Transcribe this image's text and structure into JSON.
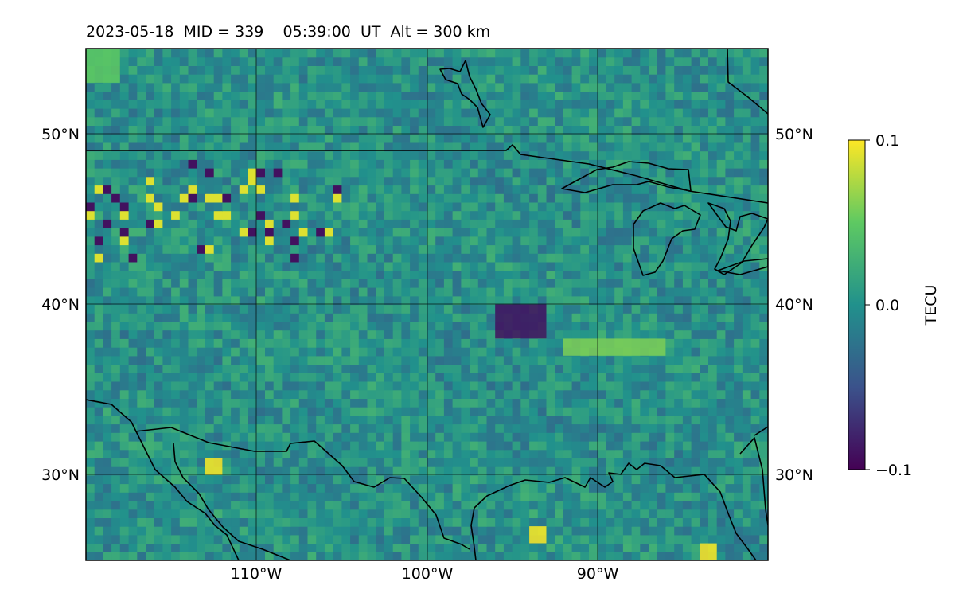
{
  "title": "2023-05-18  MID = 339    05:39:00  UT  Alt = 300 km",
  "map": {
    "lon_range": [
      -120,
      -80
    ],
    "lat_range": [
      25,
      55
    ],
    "lon_ticks": [
      -110,
      -100,
      -90
    ],
    "lat_ticks": [
      30,
      40,
      50
    ],
    "lon_tick_labels": [
      "110°W",
      "100°W",
      "90°W"
    ],
    "lat_tick_labels": [
      "30°N",
      "40°N",
      "50°N"
    ],
    "gridlines": true,
    "colormap": "viridis",
    "color_low": "#440154",
    "color_mid": "#21918c",
    "color_high": "#fde725"
  },
  "colorbar": {
    "label": "TECU",
    "min": -0.1,
    "max": 0.1,
    "tick_labels": [
      "0.1",
      "0.0",
      "−0.1"
    ]
  },
  "chart_data": {
    "type": "heatmap",
    "title": "2023-05-18  MID = 339    05:39:00  UT  Alt = 300 km",
    "date": "2023-05-18",
    "mid": 339,
    "time_ut": "05:39:00",
    "altitude_km": 300,
    "x_axis": "longitude",
    "y_axis": "latitude",
    "xlim": [
      -120,
      -80
    ],
    "ylim": [
      25,
      55
    ],
    "value_range": [
      -0.1,
      0.1
    ],
    "value_unit": "TECU",
    "grid": true,
    "features": [
      {
        "desc": "depleted band",
        "lon": [
          -96,
          -93
        ],
        "lat": [
          38,
          40
        ],
        "value": -0.09
      },
      {
        "desc": "enhanced band",
        "lon": [
          -92,
          -86
        ],
        "lat": [
          37,
          38
        ],
        "value": 0.06
      },
      {
        "desc": "enhanced patch",
        "lon": [
          -113,
          -112
        ],
        "lat": [
          30,
          31
        ],
        "value": 0.1
      },
      {
        "desc": "enhanced patch",
        "lon": [
          -94,
          -93
        ],
        "lat": [
          26,
          27
        ],
        "value": 0.1
      },
      {
        "desc": "enhanced patch",
        "lon": [
          -84,
          -83
        ],
        "lat": [
          25,
          26
        ],
        "value": 0.1
      },
      {
        "desc": "enhanced patch",
        "lon": [
          -120,
          -118
        ],
        "lat": [
          53,
          55
        ],
        "value": 0.05
      },
      {
        "desc": "mixed speckle",
        "lon": [
          -120,
          -105
        ],
        "lat": [
          42,
          49
        ],
        "value": 0.0
      }
    ]
  }
}
